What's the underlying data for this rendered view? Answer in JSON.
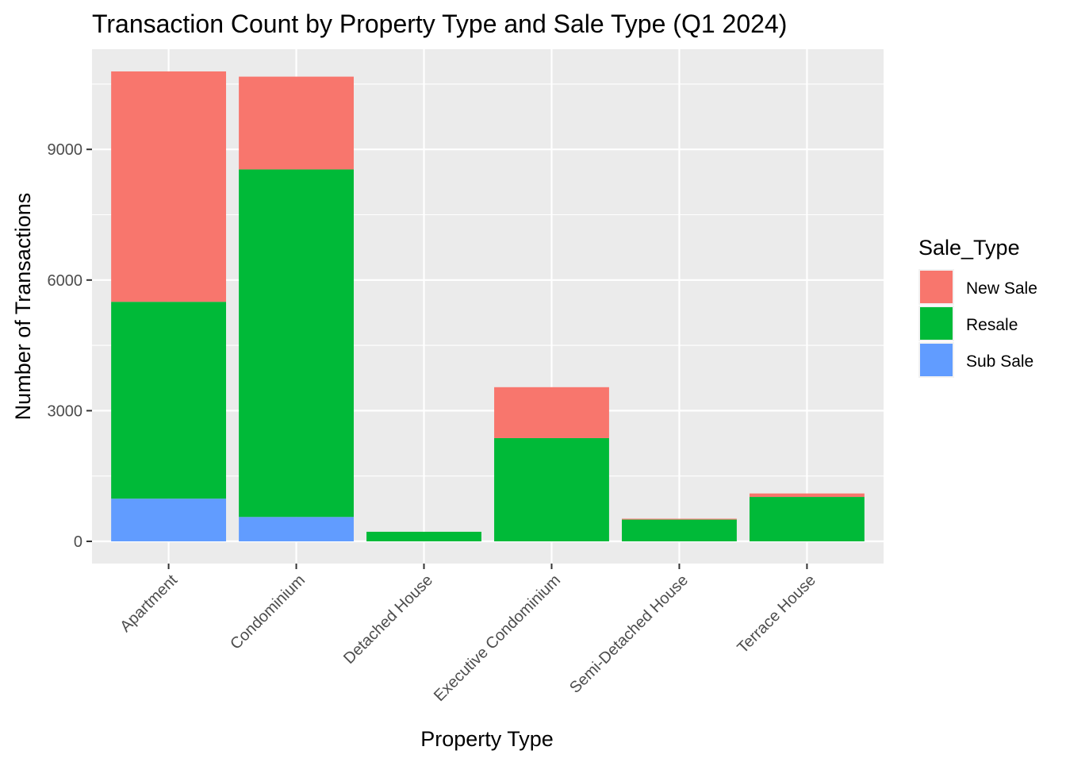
{
  "chart_data": {
    "type": "bar",
    "stacked": true,
    "title": "Transaction Count by Property Type and Sale Type (Q1 2024)",
    "xlabel": "Property Type",
    "ylabel": "Number of Transactions",
    "categories": [
      "Apartment",
      "Condominium",
      "Detached House",
      "Executive Condominium",
      "Semi-Detached House",
      "Terrace House"
    ],
    "series": [
      {
        "name": "Sub Sale",
        "color": "#619CFF",
        "values": [
          980,
          560,
          0,
          0,
          0,
          0
        ]
      },
      {
        "name": "Resale",
        "color": "#00BA38",
        "values": [
          4520,
          7980,
          220,
          2370,
          500,
          1020
        ]
      },
      {
        "name": "New Sale",
        "color": "#F8766D",
        "values": [
          5290,
          2130,
          0,
          1170,
          20,
          80
        ]
      }
    ],
    "ylim": [
      -510,
      11300
    ],
    "yticks": [
      0,
      3000,
      6000,
      9000
    ],
    "ytick_labels": [
      "0",
      "3000",
      "6000",
      "9000"
    ],
    "legend": {
      "title": "Sale_Type",
      "position": "right",
      "order": [
        "New Sale",
        "Resale",
        "Sub Sale"
      ]
    },
    "grid": true,
    "panel_color": "#EBEBEB"
  }
}
